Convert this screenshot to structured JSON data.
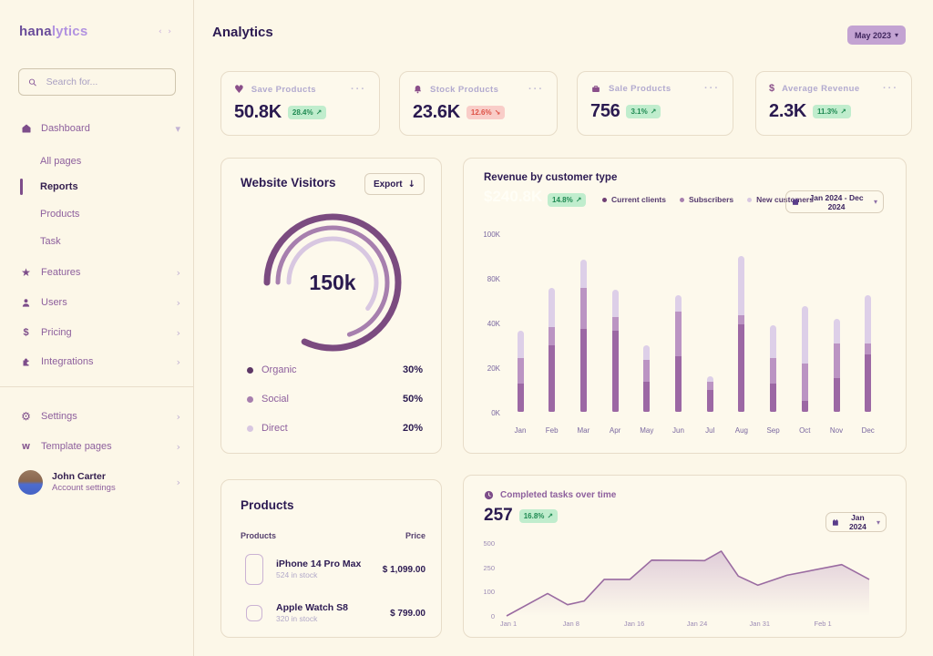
{
  "colors": {
    "background": "#fcf7e8",
    "card_border": "#e7dcc8",
    "heading": "#2c1a52",
    "sidebar_text": "#8d5f9d",
    "accent_purple": "#7d4d8a",
    "muted_label": "#b2aacf",
    "badge_up_bg": "#c0edcd",
    "badge_up_text": "#1f8a52",
    "badge_down_bg": "#f9cdc8",
    "badge_down_text": "#de5145",
    "period_button_bg": "#c3a3d2",
    "bar_dark": "#9c68a4",
    "bar_mid": "#bb94c3",
    "bar_light": "#ddcfe8",
    "line": "#9a6ba1"
  },
  "sidebar": {
    "logo_part1": "hana",
    "logo_part2": "lytics",
    "collapse_icon": "‹ ›",
    "search_placeholder": "Search for...",
    "dashboard": {
      "label": "Dashboard",
      "children": [
        {
          "label": "All pages"
        },
        {
          "label": "Reports",
          "active": true
        },
        {
          "label": "Products"
        },
        {
          "label": "Task"
        }
      ]
    },
    "sections": [
      {
        "label": "Features"
      },
      {
        "label": "Users"
      },
      {
        "label": "Pricing"
      },
      {
        "label": "Integrations"
      }
    ],
    "footer": [
      {
        "label": "Settings"
      },
      {
        "label": "Template pages"
      }
    ],
    "user": {
      "name": "John Carter",
      "subtitle": "Account settings"
    }
  },
  "header": {
    "title": "Analytics",
    "period": "May 2023"
  },
  "stats": [
    {
      "label": "Save Products",
      "value": "50.8K",
      "change": "28.4%",
      "arrow": "↗",
      "trend": "up"
    },
    {
      "label": "Stock Products",
      "value": "23.6K",
      "change": "12.6%",
      "arrow": "↘",
      "trend": "down"
    },
    {
      "label": "Sale Products",
      "value": "756",
      "change": "3.1%",
      "arrow": "↗",
      "trend": "up"
    },
    {
      "label": "Average Revenue",
      "value": "2.3K",
      "change": "11.3%",
      "arrow": "↗",
      "trend": "up"
    }
  ],
  "visitors": {
    "title": "Website Visitors",
    "export_label": "Export",
    "export_arrow": "↓",
    "center_value": "150k",
    "legend": [
      {
        "label": "Organic",
        "value": "30%",
        "color": "#5d3766"
      },
      {
        "label": "Social",
        "value": "50%",
        "color": "#a77fae"
      },
      {
        "label": "Direct",
        "value": "20%",
        "color": "#d8c7e1"
      }
    ]
  },
  "revenue": {
    "title": "Revenue by customer type",
    "total": "$240.8K",
    "change": "14.8%",
    "arrow": "↗",
    "legend": [
      {
        "label": "Current clients",
        "color": "#6f3f74"
      },
      {
        "label": "Subscribers",
        "color": "#a77fae"
      },
      {
        "label": "New customers",
        "color": "#d8c7e1"
      }
    ],
    "date_range": "Jan 2024 - Dec 2024"
  },
  "products": {
    "title": "Products",
    "col_product": "Products",
    "col_price": "Price",
    "rows": [
      {
        "name": "iPhone 14 Pro Max",
        "stock": "524 in stock",
        "price": "$ 1,099.00"
      },
      {
        "name": "Apple Watch S8",
        "stock": "320 in stock",
        "price": "$ 799.00"
      }
    ]
  },
  "tasks": {
    "title": "Completed tasks over time",
    "value": "257",
    "change": "16.8%",
    "arrow": "↗",
    "period": "Jan 2024"
  },
  "chart_data": [
    {
      "id": "visitors-donut",
      "type": "pie",
      "title": "Website Visitors",
      "center_label": "150k",
      "segments": [
        {
          "label": "Organic",
          "value": 30
        },
        {
          "label": "Social",
          "value": 50
        },
        {
          "label": "Direct",
          "value": 20
        }
      ],
      "ring_colors": [
        "#7b4b80",
        "#a77fae",
        "#d8c7e1"
      ],
      "ring_sweeps": [
        0.82,
        0.7,
        0.6
      ],
      "ring_radii": [
        72,
        60,
        48
      ],
      "ring_widths": [
        7,
        5,
        5
      ]
    },
    {
      "id": "revenue-bars",
      "type": "bar",
      "stacked": true,
      "title": "Revenue by customer type",
      "categories": [
        "Jan",
        "Feb",
        "Mar",
        "Apr",
        "May",
        "Jun",
        "Jul",
        "Aug",
        "Sep",
        "Oct",
        "Nov",
        "Dec"
      ],
      "series": [
        {
          "name": "Current clients",
          "color": "#9c68a4",
          "values": [
            16,
            37,
            46,
            45,
            17,
            31,
            12,
            49,
            16,
            6,
            19,
            32
          ]
        },
        {
          "name": "Subscribers",
          "color": "#bb94c3",
          "values": [
            14,
            10,
            23,
            8,
            12,
            25,
            5,
            5,
            14,
            21,
            19,
            6
          ]
        },
        {
          "name": "New customers",
          "color": "#ddcfe8",
          "values": [
            15,
            22,
            16,
            15,
            8,
            9,
            3,
            33,
            18,
            32,
            14,
            27
          ]
        }
      ],
      "y_ticks": [
        "100K",
        "80K",
        "40K",
        "20K",
        "0K"
      ],
      "ylim": [
        0,
        100
      ],
      "grid": false,
      "legend_position": "top"
    },
    {
      "id": "tasks-line",
      "type": "area",
      "title": "Completed tasks over time",
      "y_ticks": [
        "500",
        "250",
        "100",
        "0"
      ],
      "y_scale_stops": [
        0,
        100,
        250,
        500
      ],
      "x_ticks": [
        "Jan 1",
        "Jan 8",
        "Jan 16",
        "Jan 24",
        "Jan 31",
        "Feb 1"
      ],
      "x_tick_pct": [
        0.5,
        17.8,
        35.2,
        52.5,
        69.8,
        87.2
      ],
      "points": [
        {
          "x_pct": 0,
          "v": 0
        },
        {
          "x_pct": 11.3,
          "v": 90
        },
        {
          "x_pct": 16.8,
          "v": 45
        },
        {
          "x_pct": 21.4,
          "v": 60
        },
        {
          "x_pct": 26.9,
          "v": 170
        },
        {
          "x_pct": 34,
          "v": 170
        },
        {
          "x_pct": 40,
          "v": 310
        },
        {
          "x_pct": 54.6,
          "v": 305
        },
        {
          "x_pct": 59.2,
          "v": 400
        },
        {
          "x_pct": 63.9,
          "v": 190
        },
        {
          "x_pct": 69.3,
          "v": 135
        },
        {
          "x_pct": 77.3,
          "v": 195
        },
        {
          "x_pct": 92.4,
          "v": 265
        },
        {
          "x_pct": 100,
          "v": 170
        }
      ]
    }
  ]
}
